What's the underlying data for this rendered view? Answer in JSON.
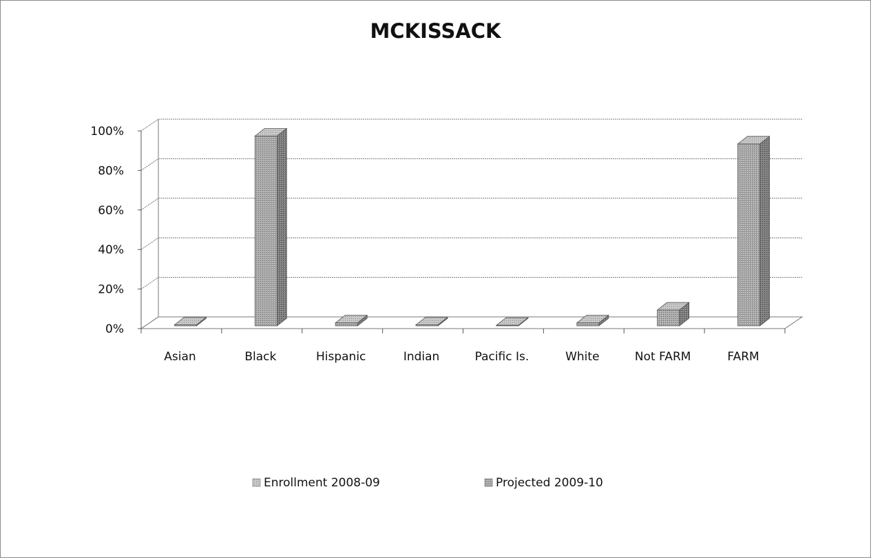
{
  "chart_data": {
    "type": "bar",
    "title": "MCKISSACK",
    "categories": [
      "Asian",
      "Black",
      "Hispanic",
      "Indian",
      "Pacific Is.",
      "White",
      "Not FARM",
      "FARM"
    ],
    "series": [
      {
        "name": "Enrollment 2008-09",
        "values": [
          0,
          0,
          0,
          0,
          0,
          0,
          0,
          0
        ]
      },
      {
        "name": "Projected 2009-10",
        "values": [
          0.5,
          96,
          1.5,
          0.5,
          0.3,
          1.5,
          8,
          92
        ]
      }
    ],
    "y_ticks": [
      "0%",
      "20%",
      "40%",
      "60%",
      "80%",
      "100%"
    ],
    "ylim": [
      0,
      100
    ],
    "grid": true,
    "legend_position": "bottom",
    "colors": {
      "series1": "#c8c8c8",
      "series2": "#9a9a9a",
      "grid": "#777777"
    }
  }
}
